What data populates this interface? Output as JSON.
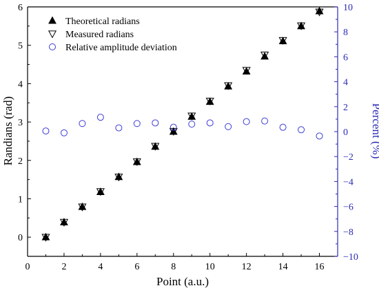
{
  "chart_data": {
    "type": "scatter",
    "xlabel": "Point (a.u.)",
    "ylabel": "Randians (rad)",
    "y2label": "Percent (%)",
    "xlim": [
      0,
      17
    ],
    "ylim": [
      -0.5,
      6
    ],
    "y2lim": [
      -10,
      10
    ],
    "x_ticks": [
      "0",
      "2",
      "4",
      "6",
      "8",
      "10",
      "12",
      "14",
      "16"
    ],
    "y_ticks": [
      "0",
      "1",
      "2",
      "3",
      "4",
      "5",
      "6"
    ],
    "y2_ticks": [
      "−10",
      "−8",
      "−6",
      "−4",
      "−2",
      "0",
      "2",
      "4",
      "6",
      "8",
      "10"
    ],
    "legend_position": "top-left",
    "colors": {
      "axis_left": "#000000",
      "axis_right": "#2b2bb5",
      "deviation": "#3b3bd6"
    },
    "series": [
      {
        "name": "Theoretical radians",
        "marker": "filled-triangle-up",
        "axis": "left",
        "x": [
          1,
          2,
          3,
          4,
          5,
          6,
          7,
          8,
          9,
          10,
          11,
          12,
          13,
          14,
          15,
          16
        ],
        "y": [
          0,
          0.39,
          0.79,
          1.18,
          1.57,
          1.96,
          2.36,
          2.75,
          3.14,
          3.53,
          3.93,
          4.32,
          4.71,
          5.11,
          5.5,
          5.89
        ]
      },
      {
        "name": "Measured radians",
        "marker": "open-triangle-down",
        "axis": "left",
        "x": [
          1,
          2,
          3,
          4,
          5,
          6,
          7,
          8,
          9,
          10,
          11,
          12,
          13,
          14,
          15,
          16
        ],
        "y": [
          0,
          0.39,
          0.79,
          1.19,
          1.57,
          1.97,
          2.37,
          2.76,
          3.16,
          3.55,
          3.95,
          4.35,
          4.75,
          5.13,
          5.51,
          5.87
        ]
      },
      {
        "name": "Relative amplitude deviation",
        "marker": "open-circle",
        "axis": "right",
        "x": [
          1,
          2,
          3,
          4,
          5,
          6,
          7,
          8,
          9,
          10,
          11,
          12,
          13,
          14,
          15,
          16
        ],
        "y": [
          0.05,
          -0.1,
          0.65,
          1.15,
          0.3,
          0.65,
          0.7,
          0.35,
          0.6,
          0.7,
          0.4,
          0.8,
          0.85,
          0.35,
          0.15,
          -0.35
        ]
      }
    ]
  }
}
